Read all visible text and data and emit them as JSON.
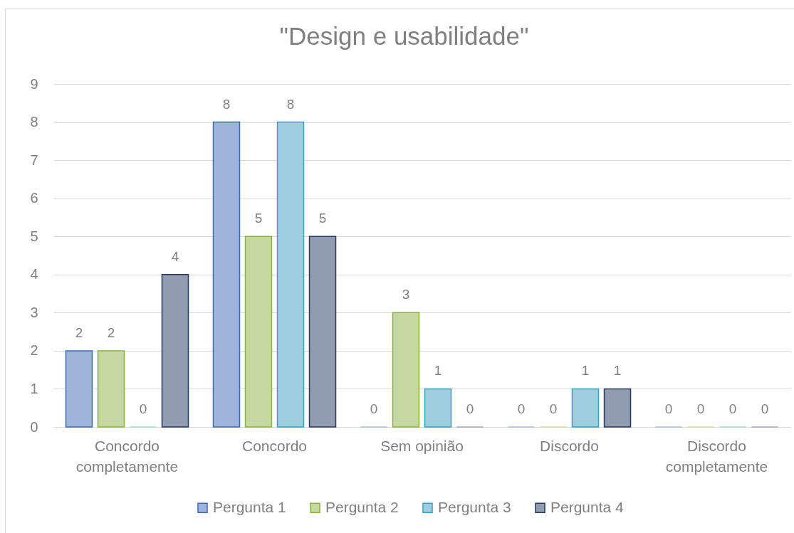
{
  "chart_data": {
    "type": "bar",
    "title": "\"Design e usabilidade\"",
    "categories": [
      "Concordo completamente",
      "Concordo",
      "Sem opinião",
      "Discordo",
      "Discordo completamente"
    ],
    "series": [
      {
        "name": "Pergunta 1",
        "color": "#9fb4da",
        "values": [
          2,
          8,
          0,
          0,
          0
        ]
      },
      {
        "name": "Pergunta 2",
        "color": "#c5d8a2",
        "values": [
          2,
          5,
          3,
          0,
          0
        ]
      },
      {
        "name": "Pergunta 3",
        "color": "#9dcfdf",
        "values": [
          0,
          8,
          1,
          1,
          0
        ]
      },
      {
        "name": "Pergunta 4",
        "color": "#929cb0",
        "values": [
          4,
          5,
          0,
          1,
          0
        ]
      }
    ],
    "ylim": [
      0,
      9
    ],
    "yticks": [
      0,
      1,
      2,
      3,
      4,
      5,
      6,
      7,
      8,
      9
    ],
    "grid": "y",
    "legend": "bottom",
    "data_labels": true
  }
}
